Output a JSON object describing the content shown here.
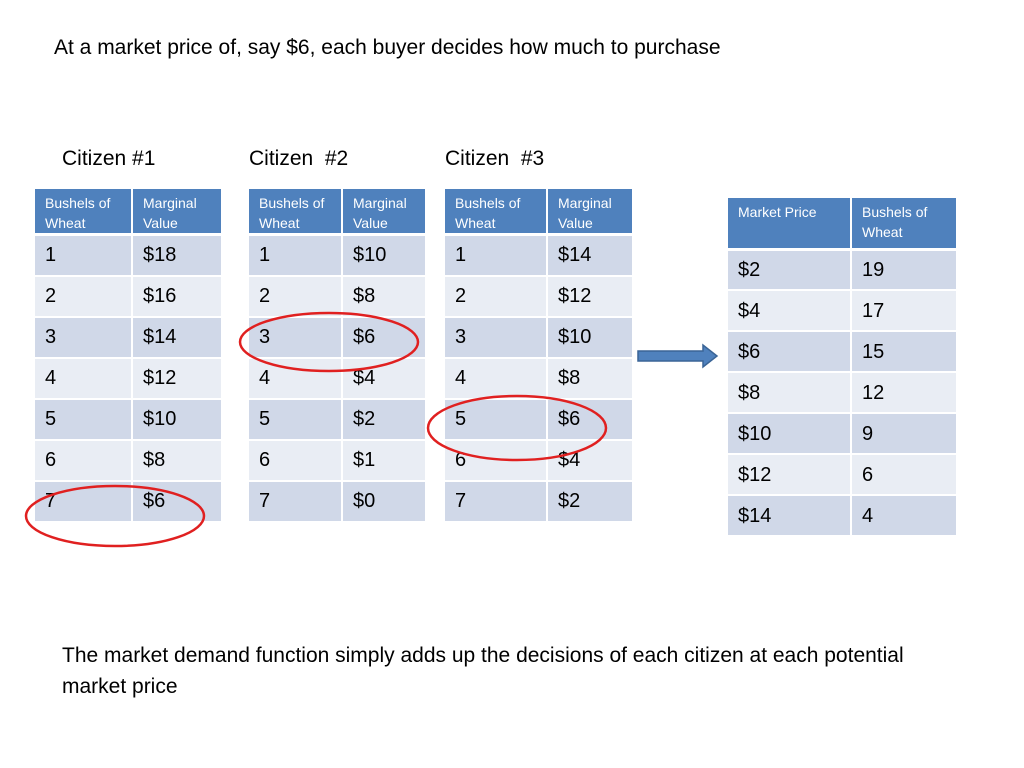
{
  "heading": "At a market price of, say $6, each buyer decides how much to purchase",
  "citizens": [
    {
      "label": "Citizen #1",
      "headers": [
        "Bushels of Wheat",
        "Marginal Value"
      ],
      "rows": [
        [
          "1",
          "$18"
        ],
        [
          "2",
          "$16"
        ],
        [
          "3",
          "$14"
        ],
        [
          "4",
          "$12"
        ],
        [
          "5",
          "$10"
        ],
        [
          "6",
          "$8"
        ],
        [
          "7",
          "$6"
        ]
      ],
      "circled_row": 7
    },
    {
      "label": "Citizen  #2",
      "headers": [
        "Bushels of Wheat",
        "Marginal Value"
      ],
      "rows": [
        [
          "1",
          "$10"
        ],
        [
          "2",
          "$8"
        ],
        [
          "3",
          "$6"
        ],
        [
          "4",
          "$4"
        ],
        [
          "5",
          "$2"
        ],
        [
          "6",
          "$1"
        ],
        [
          "7",
          "$0"
        ]
      ],
      "circled_row": 3
    },
    {
      "label": "Citizen  #3",
      "headers": [
        "Bushels of Wheat",
        "Marginal Value"
      ],
      "rows": [
        [
          "1",
          "$14"
        ],
        [
          "2",
          "$12"
        ],
        [
          "3",
          "$10"
        ],
        [
          "4",
          "$8"
        ],
        [
          "5",
          "$6"
        ],
        [
          "6",
          "$4"
        ],
        [
          "7",
          "$2"
        ]
      ],
      "circled_row": 5
    }
  ],
  "market": {
    "headers": [
      "Market Price",
      "Bushels of Wheat"
    ],
    "rows": [
      [
        "$2",
        "19"
      ],
      [
        "$4",
        "17"
      ],
      [
        "$6",
        "15"
      ],
      [
        "$8",
        "12"
      ],
      [
        "$10",
        "9"
      ],
      [
        "$12",
        "6"
      ],
      [
        "$14",
        "4"
      ]
    ]
  },
  "footer": "The market demand function simply adds up the decisions of each citizen at each potential market price",
  "colors": {
    "header_bg": "#4f81bd",
    "row_dark": "#d0d8e8",
    "row_light": "#e9edf4",
    "circle": "#e02020",
    "arrow": "#4f81bd"
  },
  "icons": {
    "arrow": "right-arrow-icon",
    "circle": "highlight-circle"
  }
}
